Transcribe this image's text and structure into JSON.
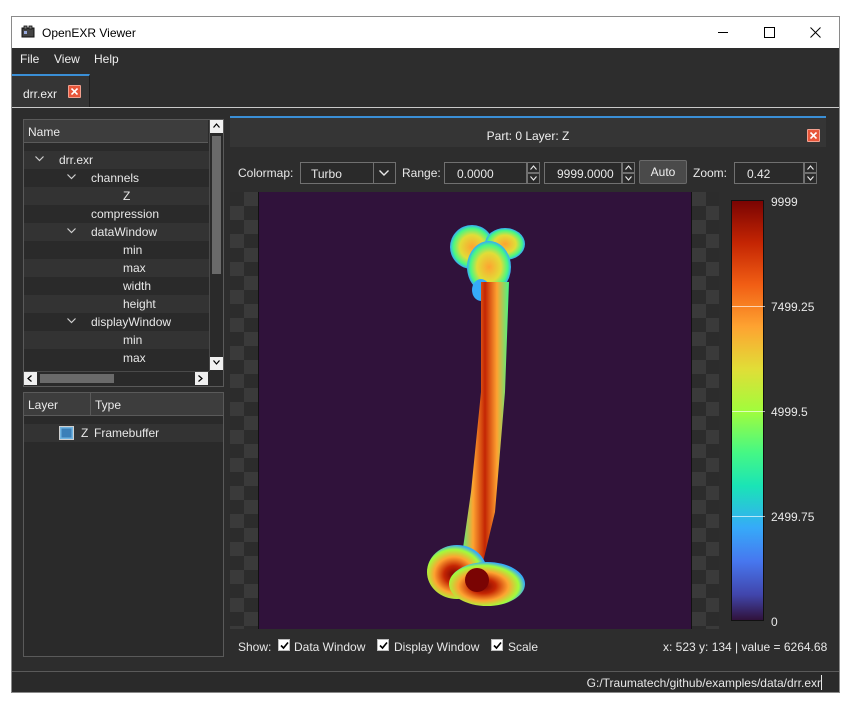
{
  "window": {
    "title": "OpenEXR Viewer",
    "controls": [
      "minimize-icon",
      "maximize-icon",
      "close-icon"
    ]
  },
  "menu": {
    "items": [
      "File",
      "View",
      "Help"
    ]
  },
  "file_tab": {
    "label": "drr.exr",
    "close_icon": "close-icon",
    "accent_color": "#3a8fd6",
    "close_color": "#e8563a"
  },
  "tree": {
    "header": "Name",
    "items": [
      {
        "label": "drr.exr",
        "expanded": true
      },
      {
        "label": "channels",
        "expanded": true
      },
      {
        "label": "Z"
      },
      {
        "label": "compression"
      },
      {
        "label": "dataWindow",
        "expanded": true
      },
      {
        "label": "min"
      },
      {
        "label": "max"
      },
      {
        "label": "width"
      },
      {
        "label": "height"
      },
      {
        "label": "displayWindow",
        "expanded": true
      },
      {
        "label": "min"
      },
      {
        "label": "max"
      }
    ]
  },
  "layers": {
    "columns": [
      "Layer",
      "Type"
    ],
    "rows": [
      {
        "layer": "Z",
        "type": "Framebuffer",
        "icon": "layer-image-icon"
      }
    ]
  },
  "viewer": {
    "part_title": "Part: 0 Layer: Z",
    "colormap_label": "Colormap:",
    "colormap_value": "Turbo",
    "range_label": "Range:",
    "range_min": "0.0000",
    "range_max": "9999.0000",
    "auto_label": "Auto",
    "zoom_label": "Zoom:",
    "zoom_value": "0.42",
    "background_color": "#30123b"
  },
  "colorbar": {
    "labels": [
      "9999",
      "7499.25",
      "4999.5",
      "2499.75",
      "0"
    ],
    "colormap": "Turbo"
  },
  "show": {
    "label": "Show:",
    "options": [
      {
        "label": "Data Window",
        "checked": true
      },
      {
        "label": "Display Window",
        "checked": true
      },
      {
        "label": "Scale",
        "checked": true
      }
    ]
  },
  "pixel_info": "x: 523 y: 134 | value = 6264.68",
  "status": {
    "path": "G:/Traumatech/github/examples/data/drr.exr"
  }
}
